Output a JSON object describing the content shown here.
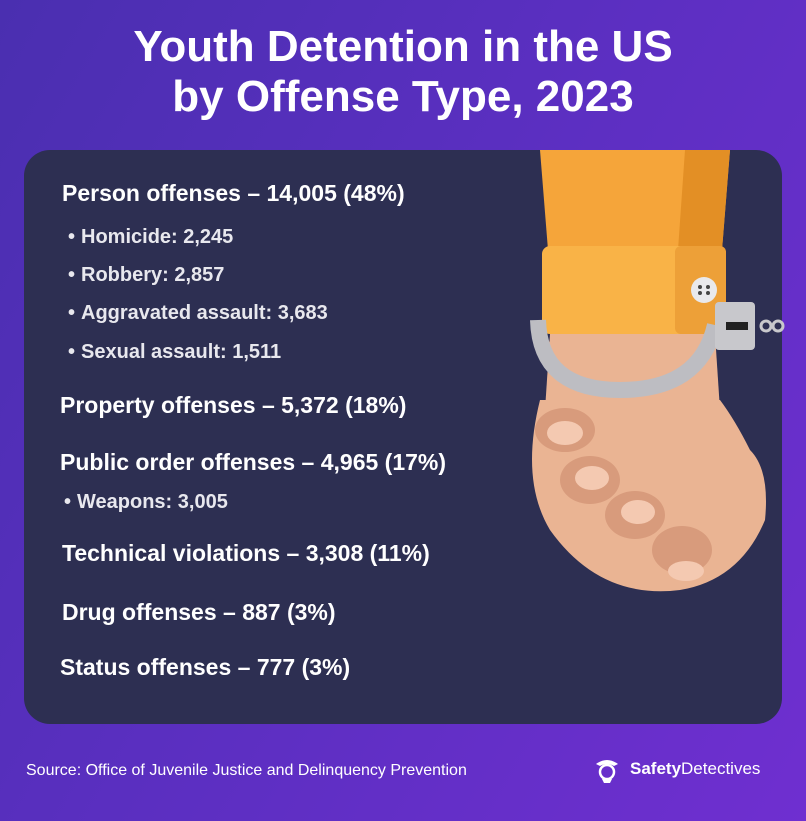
{
  "title": {
    "line1": "Youth Detention in the US",
    "line2": "by Offense Type, 2023"
  },
  "offenses": {
    "person": "Person offenses – 14,005 (48%)",
    "person_sub": [
      "Homicide: 2,245",
      "Robbery: 2,857",
      "Aggravated assault: 3,683",
      "Sexual assault: 1,511"
    ],
    "property": "Property offenses – 5,372 (18%)",
    "public_order": "Public order offenses – 4,965 (17%)",
    "public_order_sub": [
      "Weapons: 3,005"
    ],
    "technical": "Technical violations – 3,308 (11%)",
    "drug": "Drug offenses – 887 (3%)",
    "status": "Status offenses – 777 (3%)"
  },
  "footer": {
    "source": "Source: Office of Juvenile Justice and Delinquency Prevention",
    "brand_bold": "Safety",
    "brand_regular": "Detectives"
  },
  "colors": {
    "background": "#5a2fc0",
    "panel": "#2d2f52",
    "sleeve": "#f5a53a",
    "skin": "#eab493",
    "cuff": "#c8c8cc"
  },
  "icons": {
    "illustration": "handcuffed-hand-illustration",
    "brand_logo": "detective-logo-icon"
  }
}
